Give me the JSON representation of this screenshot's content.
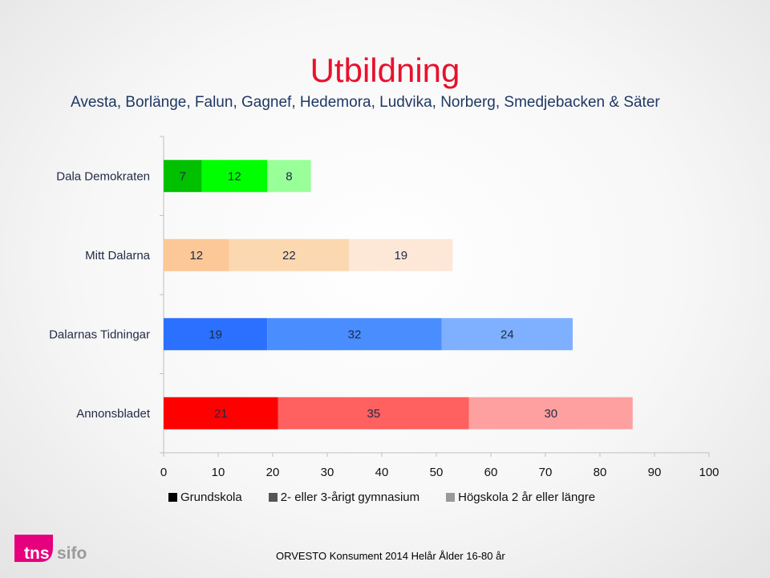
{
  "chart_data": {
    "type": "bar",
    "orientation": "horizontal",
    "stacked": true,
    "title": "Utbildning",
    "subtitle": "Avesta, Borlänge, Falun, Gagnef, Hedemora, Ludvika, Norberg, Smedjebacken & Säter",
    "categories": [
      "Dala Demokraten",
      "Mitt Dalarna",
      "Dalarnas Tidningar",
      "Annonsbladet"
    ],
    "series": [
      {
        "name": "Grundskola",
        "values": [
          7,
          12,
          19,
          21
        ]
      },
      {
        "name": "2- eller 3-årigt gymnasium",
        "values": [
          12,
          22,
          32,
          35
        ]
      },
      {
        "name": "Högskola 2 år eller längre",
        "values": [
          8,
          19,
          24,
          30
        ]
      }
    ],
    "bar_colors": [
      [
        "#00c000",
        "#00ff00",
        "#99ff99"
      ],
      [
        "#fcc898",
        "#fcd8b0",
        "#fde8d8"
      ],
      [
        "#2b70ff",
        "#4a8dff",
        "#7fb0ff"
      ],
      [
        "#ff0000",
        "#ff6060",
        "#ffa0a0"
      ]
    ],
    "legend_colors": [
      "#000000",
      "#555555",
      "#999999"
    ],
    "xlim": [
      0,
      100
    ],
    "xticks": [
      0,
      10,
      20,
      30,
      40,
      50,
      60,
      70,
      80,
      90,
      100
    ],
    "grid": false,
    "legend_position": "bottom"
  },
  "footer": {
    "source": "ORVESTO Konsument 2014 Helår Ålder 16-80 år",
    "logo_left": "tns",
    "logo_right": "sifo"
  }
}
